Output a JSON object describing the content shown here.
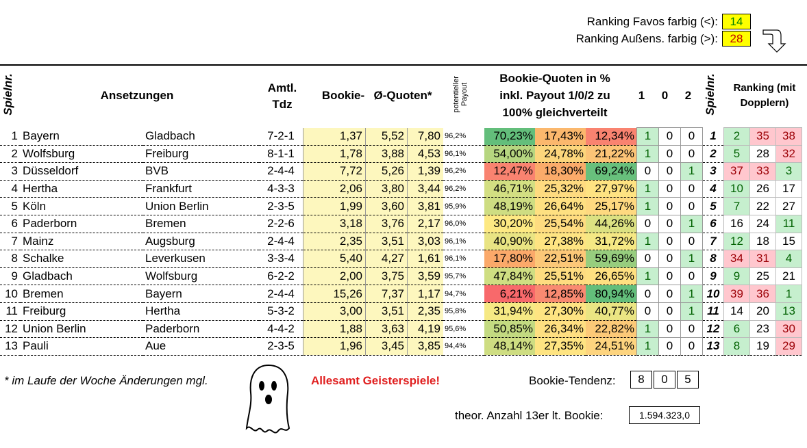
{
  "ranking_favos": {
    "label": "Ranking Favos farbig (<):",
    "value": "14"
  },
  "ranking_aussen": {
    "label": "Ranking Außens. farbig (>):",
    "value": "28"
  },
  "headers": {
    "spielnr": "Spielnr.",
    "ansetzungen": "Ansetzungen",
    "amtl": "Amtl.",
    "tdz": "Tdz",
    "bookie": "Bookie-",
    "quoten": "Ø-Quoten*",
    "payout_top": "potentieller",
    "payout_bottom": "Payout",
    "bq_line1": "Bookie-Quoten in %",
    "bq_line2": "inkl. Payout 1/0/2 zu",
    "bq_line3": "100% gleichverteilt",
    "t1": "1",
    "t0": "0",
    "t2": "2",
    "spielnr2": "Spielnr.",
    "ranking_line1": "Ranking (mit",
    "ranking_line2": "Dopplern)"
  },
  "rows": [
    {
      "nr": "1",
      "home": "Bayern",
      "away": "Gladbach",
      "tdz": "7-2-1",
      "q1": "1,37",
      "q0": "5,52",
      "q2": "7,80",
      "payout": "96,2%",
      "p1": "70,23%",
      "p0": "17,43%",
      "p2": "12,34%",
      "c1": "#63be7b",
      "c0": "#fbb86d",
      "c2": "#f98370",
      "t1": "1",
      "t0": "0",
      "t2": "0",
      "sp": "1",
      "r1": "2",
      "r0": "35",
      "r2": "38",
      "rc1": "g",
      "rc0": "r",
      "rc2": "r"
    },
    {
      "nr": "2",
      "home": "Wolfsburg",
      "away": "Freiburg",
      "tdz": "8-1-1",
      "q1": "1,78",
      "q0": "3,88",
      "q2": "4,53",
      "payout": "96,1%",
      "p1": "54,00%",
      "p0": "24,78%",
      "p2": "21,22%",
      "c1": "#b6d680",
      "c0": "#fcd67c",
      "c2": "#fcc477",
      "t1": "1",
      "t0": "0",
      "t2": "0",
      "sp": "2",
      "r1": "5",
      "r0": "28",
      "r2": "32",
      "rc1": "g",
      "rc0": "",
      "rc2": "r"
    },
    {
      "nr": "3",
      "home": "Düsseldorf",
      "away": "BVB",
      "tdz": "2-4-4",
      "q1": "7,72",
      "q0": "5,26",
      "q2": "1,39",
      "payout": "96,2%",
      "p1": "12,47%",
      "p0": "18,30%",
      "p2": "69,24%",
      "c1": "#f98370",
      "c0": "#fbab6a",
      "c2": "#68c07c",
      "t1": "0",
      "t0": "0",
      "t2": "1",
      "sp": "3",
      "r1": "37",
      "r0": "33",
      "r2": "3",
      "rc1": "r",
      "rc0": "r",
      "rc2": "g"
    },
    {
      "nr": "4",
      "home": "Hertha",
      "away": "Frankfurt",
      "tdz": "4-3-3",
      "q1": "2,06",
      "q0": "3,80",
      "q2": "3,44",
      "payout": "96,2%",
      "p1": "46,71%",
      "p0": "25,32%",
      "p2": "27,97%",
      "c1": "#d3df82",
      "c0": "#fedb80",
      "c2": "#fee382",
      "t1": "1",
      "t0": "0",
      "t2": "0",
      "sp": "4",
      "r1": "10",
      "r0": "26",
      "r2": "17",
      "rc1": "g",
      "rc0": "",
      "rc2": ""
    },
    {
      "nr": "5",
      "home": "Köln",
      "away": "Union Berlin",
      "tdz": "2-3-5",
      "q1": "1,99",
      "q0": "3,60",
      "q2": "3,81",
      "payout": "95,9%",
      "p1": "48,19%",
      "p0": "26,64%",
      "p2": "25,17%",
      "c1": "#cedd82",
      "c0": "#fee081",
      "c2": "#fed980",
      "t1": "1",
      "t0": "0",
      "t2": "0",
      "sp": "5",
      "r1": "7",
      "r0": "22",
      "r2": "27",
      "rc1": "g",
      "rc0": "",
      "rc2": ""
    },
    {
      "nr": "6",
      "home": "Paderborn",
      "away": "Bremen",
      "tdz": "2-2-6",
      "q1": "3,18",
      "q0": "3,76",
      "q2": "2,17",
      "payout": "96,0%",
      "p1": "30,20%",
      "p0": "25,54%",
      "p2": "44,26%",
      "c1": "#fde983",
      "c0": "#fedc80",
      "c2": "#dce182",
      "t1": "0",
      "t0": "0",
      "t2": "1",
      "sp": "6",
      "r1": "16",
      "r0": "24",
      "r2": "11",
      "rc1": "",
      "rc0": "",
      "rc2": "g"
    },
    {
      "nr": "7",
      "home": "Mainz",
      "away": "Augsburg",
      "tdz": "2-4-4",
      "q1": "2,35",
      "q0": "3,51",
      "q2": "3,03",
      "payout": "96,1%",
      "p1": "40,90%",
      "p0": "27,38%",
      "p2": "31,72%",
      "c1": "#e9e483",
      "c0": "#fee482",
      "c2": "#f5e884",
      "t1": "1",
      "t0": "0",
      "t2": "0",
      "sp": "7",
      "r1": "12",
      "r0": "18",
      "r2": "15",
      "rc1": "g",
      "rc0": "",
      "rc2": ""
    },
    {
      "nr": "8",
      "home": "Schalke",
      "away": "Leverkusen",
      "tdz": "3-3-4",
      "q1": "5,40",
      "q0": "4,27",
      "q2": "1,61",
      "payout": "96,1%",
      "p1": "17,80%",
      "p0": "22,51%",
      "p2": "59,69%",
      "c1": "#fba96a",
      "c0": "#fcc878",
      "c2": "#97cd7e",
      "t1": "0",
      "t0": "0",
      "t2": "1",
      "sp": "8",
      "r1": "34",
      "r0": "31",
      "r2": "4",
      "rc1": "r",
      "rc0": "r",
      "rc2": "g"
    },
    {
      "nr": "9",
      "home": "Gladbach",
      "away": "Wolfsburg",
      "tdz": "6-2-2",
      "q1": "2,00",
      "q0": "3,75",
      "q2": "3,59",
      "payout": "95,7%",
      "p1": "47,84%",
      "p0": "25,51%",
      "p2": "26,65%",
      "c1": "#cfde82",
      "c0": "#fedc80",
      "c2": "#fee081",
      "t1": "1",
      "t0": "0",
      "t2": "0",
      "sp": "9",
      "r1": "9",
      "r0": "25",
      "r2": "21",
      "rc1": "g",
      "rc0": "",
      "rc2": ""
    },
    {
      "nr": "10",
      "home": "Bremen",
      "away": "Bayern",
      "tdz": "2-4-4",
      "q1": "15,26",
      "q0": "7,37",
      "q2": "1,17",
      "payout": "94,7%",
      "p1": "6,21%",
      "p0": "12,85%",
      "p2": "80,94%",
      "c1": "#f8696b",
      "c0": "#f98a71",
      "c2": "#63be7b",
      "t1": "0",
      "t0": "0",
      "t2": "1",
      "sp": "10",
      "r1": "39",
      "r0": "36",
      "r2": "1",
      "rc1": "r",
      "rc0": "r",
      "rc2": "g"
    },
    {
      "nr": "11",
      "home": "Freiburg",
      "away": "Hertha",
      "tdz": "5-3-2",
      "q1": "3,00",
      "q0": "3,51",
      "q2": "2,35",
      "payout": "95,8%",
      "p1": "31,94%",
      "p0": "27,30%",
      "p2": "40,77%",
      "c1": "#f6e984",
      "c0": "#fee482",
      "c2": "#eae583",
      "t1": "0",
      "t0": "0",
      "t2": "1",
      "sp": "11",
      "r1": "14",
      "r0": "20",
      "r2": "13",
      "rc1": "",
      "rc0": "",
      "rc2": "g"
    },
    {
      "nr": "12",
      "home": "Union Berlin",
      "away": "Paderborn",
      "tdz": "4-4-2",
      "q1": "1,88",
      "q0": "3,63",
      "q2": "4,19",
      "payout": "95,6%",
      "p1": "50,85%",
      "p0": "26,34%",
      "p2": "22,82%",
      "c1": "#c3da81",
      "c0": "#fedf81",
      "c2": "#fcc978",
      "t1": "1",
      "t0": "0",
      "t2": "0",
      "sp": "12",
      "r1": "6",
      "r0": "23",
      "r2": "30",
      "rc1": "g",
      "rc0": "",
      "rc2": "r"
    },
    {
      "nr": "13",
      "home": "Pauli",
      "away": "Aue",
      "tdz": "2-3-5",
      "q1": "1,96",
      "q0": "3,45",
      "q2": "3,85",
      "payout": "94,4%",
      "p1": "48,14%",
      "p0": "27,35%",
      "p2": "24,51%",
      "c1": "#cedd82",
      "c0": "#fee482",
      "c2": "#fdd47f",
      "t1": "1",
      "t0": "0",
      "t2": "0",
      "sp": "13",
      "r1": "8",
      "r0": "19",
      "r2": "29",
      "rc1": "g",
      "rc0": "",
      "rc2": "r"
    }
  ],
  "footer": {
    "note": "* im Laufe der Woche Änderungen mgl.",
    "geister": "Allesamt Geisterspiele!",
    "tendenz_label": "Bookie-Tendenz:",
    "tendenz": [
      "8",
      "0",
      "5"
    ],
    "anzahl_label": "theor. Anzahl 13er lt. Bookie:",
    "anzahl_value": "1.594.323,0"
  }
}
